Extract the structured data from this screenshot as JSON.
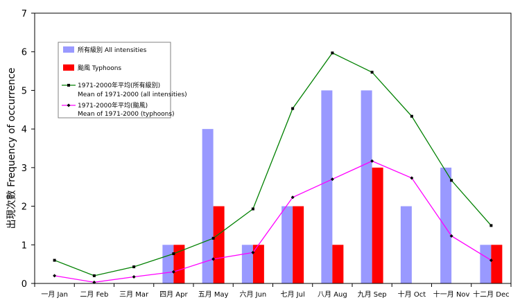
{
  "chart_data": {
    "type": "bar",
    "ylabel": "出現次數  Frequency of occurrence",
    "ylim": [
      0,
      7
    ],
    "yticks": [
      "0",
      "1",
      "2",
      "3",
      "4",
      "5",
      "6",
      "7"
    ],
    "categories": [
      "一月 Jan",
      "二月 Feb",
      "三月 Mar",
      "四月 Apr",
      "五月 May",
      "六月 Jun",
      "七月 Jul",
      "八月 Aug",
      "九月 Sep",
      "十月 Oct",
      "十一月 Nov",
      "十二月 Dec"
    ],
    "series": [
      {
        "name": "所有級別  All intensities",
        "kind": "bar",
        "color": "#9999ff",
        "values": [
          0,
          0,
          0,
          1,
          4,
          1,
          2,
          5,
          5,
          2,
          3,
          1
        ]
      },
      {
        "name": "颱風  Typhoons",
        "kind": "bar",
        "color": "#ff0000",
        "values": [
          0,
          0,
          0,
          1,
          2,
          1,
          2,
          1,
          3,
          0,
          0,
          1
        ]
      },
      {
        "name": "1971-2000年平均(所有級別)",
        "name2": "Mean of 1971-2000 (all intensities)",
        "kind": "line",
        "color": "#008000",
        "marker": "square",
        "values": [
          0.6,
          0.2,
          0.43,
          0.77,
          1.17,
          1.93,
          4.53,
          5.97,
          5.47,
          4.33,
          2.67,
          1.5
        ]
      },
      {
        "name": "1971-2000年平均(颱風)",
        "name2": "Mean of 1971-2000 (typhoons)",
        "kind": "line",
        "color": "#ff00ff",
        "marker": "diamond",
        "values": [
          0.2,
          0.03,
          0.17,
          0.3,
          0.63,
          0.8,
          2.23,
          2.7,
          3.17,
          2.73,
          1.23,
          0.6
        ]
      }
    ],
    "grid": false,
    "legend": "top-left"
  }
}
